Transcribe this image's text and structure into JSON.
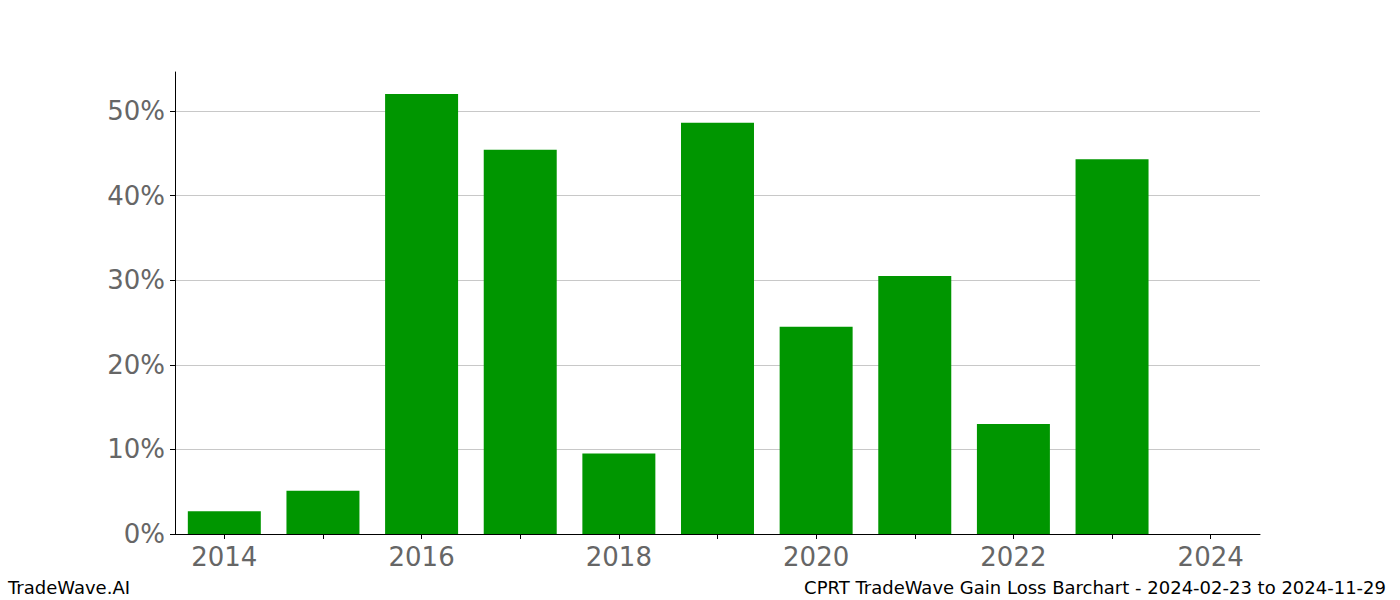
{
  "chart_data": {
    "type": "bar",
    "title": "CPRT TradeWave Gain Loss Barchart - 2024-02-23 to 2024-11-29",
    "subtitle": "TradeWave.AI",
    "categories": [
      "2014",
      null,
      "2016",
      null,
      "2018",
      null,
      "2020",
      null,
      "2022",
      null,
      "2024"
    ],
    "values": [
      2.7,
      5.1,
      52.0,
      45.4,
      9.5,
      48.6,
      24.5,
      30.5,
      13.0,
      44.3,
      null
    ],
    "color": "#009600",
    "ylim": [
      0,
      54.6
    ],
    "yticks": [
      {
        "value": 0,
        "label": "0%"
      },
      {
        "value": 10,
        "label": "10%"
      },
      {
        "value": 20,
        "label": "20%"
      },
      {
        "value": 30,
        "label": "30%"
      },
      {
        "value": 40,
        "label": "40%"
      },
      {
        "value": 50,
        "label": "50%"
      }
    ],
    "grid": true
  }
}
